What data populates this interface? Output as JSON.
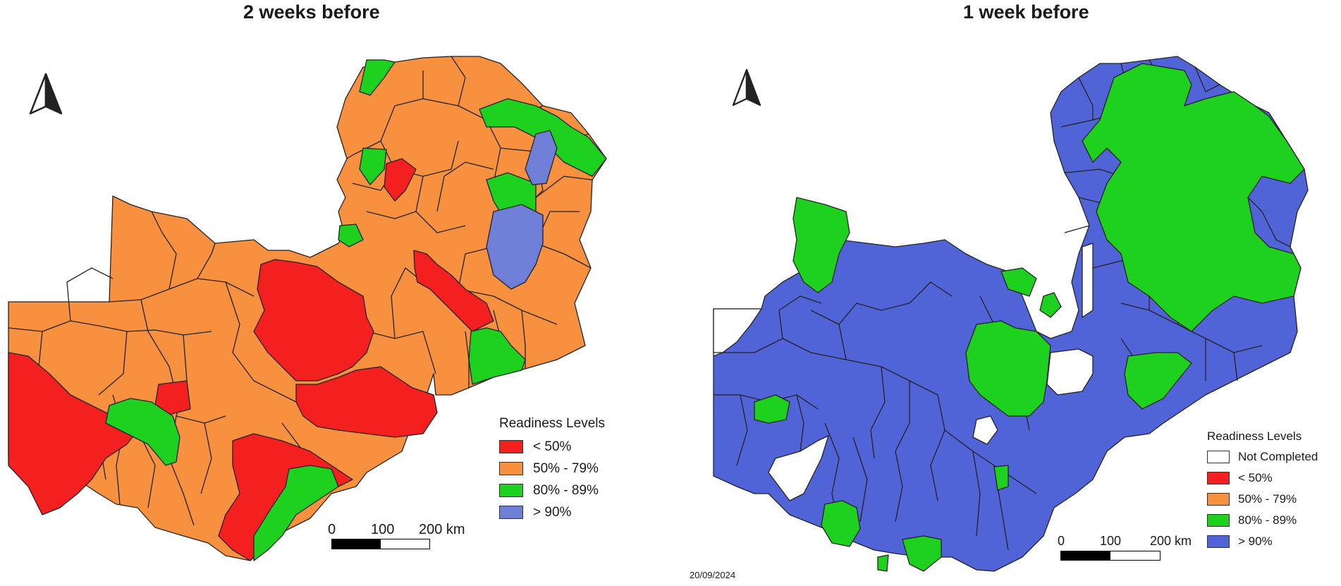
{
  "colors": {
    "not_completed": "#ffffff",
    "lt50": "#f41f1f",
    "r50_79": "#f7913f",
    "r80_89": "#1fd11f",
    "gt90": "#5064d8",
    "boundary": "#222222"
  },
  "left_map": {
    "title": "2 weeks before",
    "north_arrow": "north-arrow-icon",
    "legend": {
      "title": "Readiness Levels",
      "items": [
        {
          "label": "< 50%",
          "color": "#f41f1f"
        },
        {
          "label": "50% -  79%",
          "color": "#f7913f"
        },
        {
          "label": "80% - 89%",
          "color": "#1fd11f"
        },
        {
          "label": "> 90%",
          "color": "#6f7fd8"
        }
      ]
    },
    "scalebar": {
      "labels": [
        "0",
        "100",
        "200 km"
      ]
    }
  },
  "right_map": {
    "title": "1 week before",
    "north_arrow": "north-arrow-icon",
    "legend": {
      "title": "Readiness Levels",
      "items": [
        {
          "label": "Not Completed",
          "color": "#ffffff"
        },
        {
          "label": "< 50%",
          "color": "#f41f1f"
        },
        {
          "label": "50% - 79%",
          "color": "#f7913f"
        },
        {
          "label": "80%  - 89%",
          "color": "#1fd11f"
        },
        {
          "label": "> 90%",
          "color": "#5064d8"
        }
      ]
    },
    "scalebar": {
      "labels": [
        "0",
        "100",
        "200 km"
      ]
    },
    "date": "20/09/2024"
  }
}
